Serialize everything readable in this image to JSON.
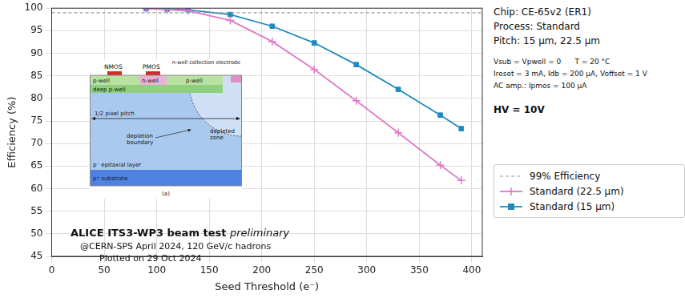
{
  "chart_data": {
    "type": "line",
    "x_label": "Seed Threshold (e⁻)",
    "y_label": "Efficiency (%)",
    "xlim": [
      0,
      410
    ],
    "xticks": [
      0,
      50,
      100,
      150,
      200,
      250,
      300,
      350,
      400
    ],
    "ylim": [
      45,
      100
    ],
    "yticks": [
      45,
      50,
      55,
      60,
      65,
      70,
      75,
      80,
      85,
      90,
      95,
      100
    ],
    "grid": true,
    "legend": "right",
    "series": [
      {
        "name": "99% Efficiency",
        "color": "#999999",
        "marker": "none",
        "line_style": "dashed",
        "x": [
          0,
          410
        ],
        "values": [
          99,
          99
        ]
      },
      {
        "name": "Standard (22.5 µm)",
        "color": "#e07ac6",
        "marker": "plus",
        "line_style": "solid",
        "x": [
          90,
          110,
          130,
          170,
          210,
          250,
          290,
          330,
          370,
          390
        ],
        "values": [
          99.9,
          99.7,
          99.4,
          97.3,
          92.6,
          86.4,
          79.5,
          72.4,
          65.2,
          61.8
        ]
      },
      {
        "name": "Standard (15 µm)",
        "color": "#1f8ac0",
        "marker": "square",
        "line_style": "solid",
        "x": [
          90,
          110,
          130,
          170,
          210,
          250,
          290,
          330,
          370,
          390
        ],
        "values": [
          99.9,
          99.8,
          99.6,
          98.6,
          96.0,
          92.3,
          87.5,
          82.0,
          76.3,
          73.3
        ]
      }
    ],
    "annotations": [
      "ALICE ITS3-WP3 beam test preliminary",
      "@CERN-SPS April 2024, 120 GeV/c hadrons",
      "Plotted on 29 Oct 2024"
    ],
    "info": {
      "chip": "Chip: CE-65v2 (ER1)",
      "process": "Process: Standard",
      "pitch": "Pitch: 15 µm, 22.5 µm",
      "conditions": [
        "Vsub = Vpwell = 0      T = 20 °C",
        "Ireset = 3 mA, Idb = 200 µA, Voffset = 1 V",
        "AC amp.: Ipmos = 100 µA"
      ],
      "hv": "HV = 10V"
    },
    "inset": {
      "nmos": "NMOS",
      "pmos": "PMOS",
      "electrode": "n-well collection electrode",
      "p_well": "p-well",
      "n_well": "n-well",
      "deep_p_well": "deep p-well",
      "pitch": "1/2 pixel pitch",
      "depletion_boundary": "depletion boundary",
      "depleted_zone": "depleted zone",
      "epi": "p⁻ epitaxial layer",
      "substrate": "p⁺ substrate",
      "caption": "(a)"
    }
  }
}
